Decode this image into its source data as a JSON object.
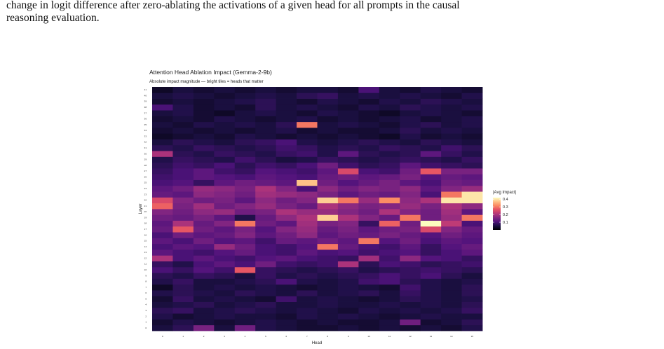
{
  "caption_lines": [
    "change in logit difference after zero-ablating the activations of a given head for all prompts in the causal",
    "reasoning evaluation."
  ],
  "chart_data": {
    "type": "heatmap",
    "title": "Attention Head Ablation Impact (Gemma-2-9b)",
    "subtitle": "Absolute impact magnitude — bright tiles = heads that matter",
    "x_label": "Head",
    "y_label": "Layer",
    "legend_title": "|Avg Impact|",
    "colormap": "magma",
    "clim": [
      0,
      0.42
    ],
    "cticks": [
      0.1,
      0.2,
      0.3,
      0.4
    ],
    "x": [
      0,
      1,
      2,
      3,
      4,
      5,
      6,
      7,
      8,
      9,
      10,
      11,
      12,
      13,
      14,
      15
    ],
    "y": [
      0,
      1,
      2,
      3,
      4,
      5,
      6,
      7,
      8,
      9,
      10,
      11,
      12,
      13,
      14,
      15,
      16,
      17,
      18,
      19,
      20,
      21,
      22,
      23,
      24,
      25,
      26,
      27,
      28,
      29,
      30,
      31,
      32,
      33,
      34,
      35,
      36,
      37,
      38,
      39,
      40,
      41
    ],
    "values": [
      [
        0.05,
        0.07,
        0.15,
        0.05,
        0.14,
        0.06,
        0.05,
        0.04,
        0.04,
        0.05,
        0.04,
        0.05,
        0.04,
        0.05,
        0.04,
        0.06
      ],
      [
        0.04,
        0.06,
        0.05,
        0.04,
        0.05,
        0.06,
        0.05,
        0.04,
        0.05,
        0.04,
        0.04,
        0.05,
        0.14,
        0.04,
        0.05,
        0.07
      ],
      [
        0.06,
        0.04,
        0.05,
        0.06,
        0.05,
        0.05,
        0.04,
        0.06,
        0.05,
        0.06,
        0.05,
        0.04,
        0.05,
        0.06,
        0.05,
        0.05
      ],
      [
        0.07,
        0.08,
        0.05,
        0.06,
        0.07,
        0.06,
        0.05,
        0.06,
        0.05,
        0.04,
        0.06,
        0.05,
        0.06,
        0.05,
        0.06,
        0.08
      ],
      [
        0.05,
        0.06,
        0.07,
        0.05,
        0.06,
        0.07,
        0.05,
        0.05,
        0.06,
        0.05,
        0.05,
        0.06,
        0.05,
        0.06,
        0.05,
        0.07
      ],
      [
        0.04,
        0.08,
        0.05,
        0.06,
        0.05,
        0.04,
        0.09,
        0.05,
        0.06,
        0.05,
        0.04,
        0.05,
        0.07,
        0.06,
        0.05,
        0.06
      ],
      [
        0.06,
        0.07,
        0.06,
        0.05,
        0.07,
        0.06,
        0.05,
        0.07,
        0.05,
        0.06,
        0.07,
        0.05,
        0.08,
        0.06,
        0.05,
        0.07
      ],
      [
        0.03,
        0.07,
        0.05,
        0.06,
        0.05,
        0.06,
        0.05,
        0.04,
        0.05,
        0.06,
        0.05,
        0.04,
        0.09,
        0.06,
        0.05,
        0.07
      ],
      [
        0.06,
        0.08,
        0.05,
        0.05,
        0.06,
        0.07,
        0.1,
        0.06,
        0.05,
        0.06,
        0.09,
        0.1,
        0.07,
        0.06,
        0.05,
        0.06
      ],
      [
        0.07,
        0.06,
        0.08,
        0.07,
        0.05,
        0.08,
        0.06,
        0.07,
        0.06,
        0.07,
        0.08,
        0.1,
        0.08,
        0.1,
        0.07,
        0.05
      ],
      [
        0.1,
        0.08,
        0.11,
        0.09,
        0.27,
        0.08,
        0.07,
        0.06,
        0.07,
        0.08,
        0.06,
        0.07,
        0.08,
        0.09,
        0.08,
        0.07
      ],
      [
        0.08,
        0.06,
        0.1,
        0.12,
        0.1,
        0.14,
        0.09,
        0.08,
        0.09,
        0.2,
        0.07,
        0.1,
        0.09,
        0.07,
        0.08,
        0.09
      ],
      [
        0.2,
        0.1,
        0.12,
        0.1,
        0.09,
        0.11,
        0.12,
        0.1,
        0.09,
        0.08,
        0.19,
        0.09,
        0.17,
        0.11,
        0.1,
        0.08
      ],
      [
        0.12,
        0.1,
        0.09,
        0.11,
        0.13,
        0.1,
        0.09,
        0.12,
        0.1,
        0.11,
        0.09,
        0.1,
        0.11,
        0.08,
        0.1,
        0.12
      ],
      [
        0.1,
        0.12,
        0.11,
        0.18,
        0.14,
        0.1,
        0.09,
        0.11,
        0.3,
        0.13,
        0.1,
        0.09,
        0.12,
        0.08,
        0.11,
        0.13
      ],
      [
        0.12,
        0.1,
        0.14,
        0.11,
        0.12,
        0.09,
        0.13,
        0.12,
        0.14,
        0.12,
        0.3,
        0.11,
        0.14,
        0.1,
        0.12,
        0.11
      ],
      [
        0.1,
        0.14,
        0.12,
        0.13,
        0.16,
        0.12,
        0.14,
        0.17,
        0.12,
        0.14,
        0.13,
        0.15,
        0.13,
        0.11,
        0.14,
        0.12
      ],
      [
        0.13,
        0.27,
        0.14,
        0.12,
        0.15,
        0.11,
        0.16,
        0.18,
        0.13,
        0.15,
        0.12,
        0.14,
        0.15,
        0.25,
        0.16,
        0.13
      ],
      [
        0.12,
        0.2,
        0.13,
        0.16,
        0.3,
        0.14,
        0.12,
        0.19,
        0.15,
        0.16,
        0.08,
        0.28,
        0.14,
        0.42,
        0.22,
        0.1
      ],
      [
        0.14,
        0.13,
        0.15,
        0.12,
        0.06,
        0.13,
        0.17,
        0.2,
        0.38,
        0.2,
        0.16,
        0.13,
        0.3,
        0.14,
        0.18,
        0.3
      ],
      [
        0.16,
        0.14,
        0.17,
        0.18,
        0.14,
        0.15,
        0.2,
        0.18,
        0.18,
        0.16,
        0.14,
        0.2,
        0.16,
        0.14,
        0.19,
        0.12
      ],
      [
        0.28,
        0.15,
        0.19,
        0.14,
        0.16,
        0.18,
        0.15,
        0.13,
        0.2,
        0.17,
        0.15,
        0.16,
        0.18,
        0.15,
        0.2,
        0.17
      ],
      [
        0.25,
        0.16,
        0.14,
        0.15,
        0.12,
        0.17,
        0.14,
        0.16,
        0.38,
        0.3,
        0.18,
        0.32,
        0.17,
        0.2,
        0.4,
        0.4
      ],
      [
        0.13,
        0.12,
        0.17,
        0.16,
        0.14,
        0.19,
        0.18,
        0.17,
        0.15,
        0.12,
        0.14,
        0.13,
        0.16,
        0.1,
        0.3,
        0.4
      ],
      [
        0.12,
        0.14,
        0.18,
        0.17,
        0.15,
        0.2,
        0.16,
        0.1,
        0.17,
        0.14,
        0.16,
        0.15,
        0.17,
        0.12,
        0.16,
        0.18
      ],
      [
        0.1,
        0.11,
        0.08,
        0.12,
        0.14,
        0.13,
        0.12,
        0.37,
        0.14,
        0.11,
        0.13,
        0.15,
        0.12,
        0.1,
        0.14,
        0.13
      ],
      [
        0.09,
        0.1,
        0.12,
        0.11,
        0.1,
        0.12,
        0.11,
        0.1,
        0.13,
        0.14,
        0.12,
        0.13,
        0.15,
        0.11,
        0.13,
        0.12
      ],
      [
        0.08,
        0.1,
        0.12,
        0.09,
        0.08,
        0.11,
        0.1,
        0.09,
        0.12,
        0.25,
        0.1,
        0.09,
        0.14,
        0.27,
        0.15,
        0.15
      ],
      [
        0.07,
        0.09,
        0.08,
        0.1,
        0.07,
        0.09,
        0.08,
        0.1,
        0.14,
        0.09,
        0.07,
        0.08,
        0.12,
        0.09,
        0.08,
        0.07
      ],
      [
        0.06,
        0.08,
        0.07,
        0.06,
        0.09,
        0.07,
        0.05,
        0.06,
        0.08,
        0.07,
        0.06,
        0.07,
        0.08,
        0.07,
        0.06,
        0.08
      ],
      [
        0.2,
        0.07,
        0.06,
        0.08,
        0.07,
        0.06,
        0.08,
        0.09,
        0.06,
        0.12,
        0.07,
        0.06,
        0.07,
        0.12,
        0.08,
        0.06
      ],
      [
        0.07,
        0.06,
        0.08,
        0.07,
        0.06,
        0.07,
        0.09,
        0.08,
        0.06,
        0.07,
        0.06,
        0.08,
        0.07,
        0.06,
        0.09,
        0.07
      ],
      [
        0.05,
        0.07,
        0.06,
        0.05,
        0.07,
        0.08,
        0.1,
        0.06,
        0.05,
        0.06,
        0.07,
        0.06,
        0.05,
        0.07,
        0.06,
        0.05
      ],
      [
        0.03,
        0.04,
        0.05,
        0.04,
        0.06,
        0.05,
        0.04,
        0.05,
        0.04,
        0.05,
        0.04,
        0.03,
        0.06,
        0.04,
        0.05,
        0.04
      ],
      [
        0.04,
        0.05,
        0.04,
        0.05,
        0.04,
        0.05,
        0.06,
        0.04,
        0.05,
        0.04,
        0.04,
        0.05,
        0.07,
        0.05,
        0.06,
        0.05
      ],
      [
        0.05,
        0.04,
        0.06,
        0.05,
        0.06,
        0.05,
        0.07,
        0.3,
        0.05,
        0.06,
        0.05,
        0.04,
        0.06,
        0.07,
        0.05,
        0.06
      ],
      [
        0.04,
        0.05,
        0.04,
        0.06,
        0.05,
        0.04,
        0.05,
        0.06,
        0.04,
        0.05,
        0.04,
        0.05,
        0.06,
        0.04,
        0.05,
        0.06
      ],
      [
        0.05,
        0.06,
        0.04,
        0.03,
        0.05,
        0.06,
        0.05,
        0.04,
        0.06,
        0.05,
        0.04,
        0.03,
        0.05,
        0.06,
        0.05,
        0.04
      ],
      [
        0.1,
        0.06,
        0.04,
        0.05,
        0.04,
        0.07,
        0.05,
        0.06,
        0.05,
        0.04,
        0.06,
        0.05,
        0.07,
        0.06,
        0.05,
        0.06
      ],
      [
        0.04,
        0.05,
        0.04,
        0.05,
        0.06,
        0.07,
        0.05,
        0.04,
        0.06,
        0.05,
        0.04,
        0.06,
        0.05,
        0.07,
        0.06,
        0.05
      ],
      [
        0.05,
        0.06,
        0.05,
        0.04,
        0.05,
        0.06,
        0.05,
        0.07,
        0.08,
        0.05,
        0.06,
        0.05,
        0.06,
        0.05,
        0.04,
        0.06
      ],
      [
        0.03,
        0.05,
        0.04,
        0.05,
        0.04,
        0.05,
        0.04,
        0.05,
        0.05,
        0.04,
        0.1,
        0.05,
        0.04,
        0.06,
        0.05,
        0.04
      ]
    ]
  }
}
